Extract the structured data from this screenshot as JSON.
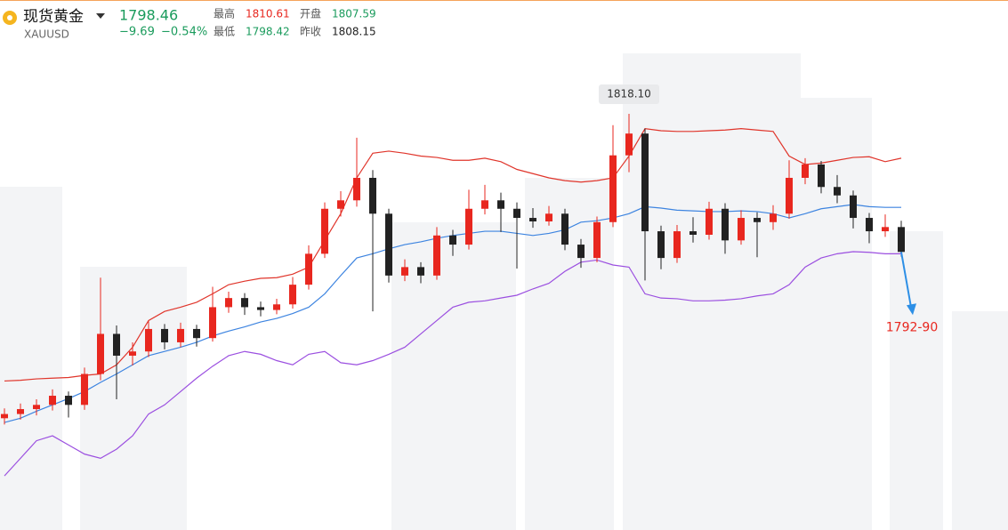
{
  "header": {
    "name": "现货黄金",
    "symbol": "XAUUSD",
    "price": 1798.46,
    "change": {
      "value": -9.69,
      "label": "−9.69"
    },
    "change_pct": {
      "value": -0.54,
      "label": "−0.54%"
    },
    "stats": [
      {
        "label": "最高",
        "value": 1810.61,
        "color": "#e8271f"
      },
      {
        "label": "开盘",
        "value": 1807.59,
        "color": "#1a9b5c"
      },
      {
        "label": "最低",
        "value": 1798.42,
        "color": "#1a9b5c"
      },
      {
        "label": "昨收",
        "value": 1808.15,
        "color": "#222222"
      }
    ]
  },
  "chart_data": {
    "type": "candlestick",
    "ylim": [
      1758.9,
      1834.3
    ],
    "up_color": "#e8271f",
    "down_color": "#222222",
    "ohlc": [
      [
        1774.8,
        1776.2,
        1773.9,
        1775.4
      ],
      [
        1775.4,
        1776.9,
        1774.6,
        1776.1
      ],
      [
        1776.1,
        1777.5,
        1775.2,
        1776.7
      ],
      [
        1776.7,
        1778.9,
        1775.9,
        1778.0
      ],
      [
        1778.0,
        1778.6,
        1774.9,
        1776.7
      ],
      [
        1776.7,
        1782.0,
        1776.0,
        1781.1
      ],
      [
        1781.1,
        1794.8,
        1780.2,
        1786.8
      ],
      [
        1786.8,
        1788.0,
        1777.5,
        1783.7
      ],
      [
        1783.7,
        1785.6,
        1782.3,
        1784.3
      ],
      [
        1784.3,
        1788.6,
        1783.5,
        1787.5
      ],
      [
        1787.5,
        1788.2,
        1784.6,
        1785.6
      ],
      [
        1785.6,
        1788.4,
        1784.9,
        1787.5
      ],
      [
        1787.5,
        1788.1,
        1785.0,
        1786.2
      ],
      [
        1786.2,
        1793.5,
        1785.7,
        1790.6
      ],
      [
        1790.6,
        1792.8,
        1789.8,
        1791.9
      ],
      [
        1791.9,
        1792.6,
        1789.5,
        1790.6
      ],
      [
        1790.6,
        1791.4,
        1789.3,
        1790.2
      ],
      [
        1790.2,
        1791.8,
        1789.6,
        1791.0
      ],
      [
        1791.0,
        1794.9,
        1790.4,
        1793.8
      ],
      [
        1793.8,
        1799.4,
        1793.1,
        1798.2
      ],
      [
        1798.2,
        1805.5,
        1797.6,
        1804.6
      ],
      [
        1804.6,
        1807.1,
        1803.5,
        1805.8
      ],
      [
        1805.8,
        1814.7,
        1804.9,
        1809.0
      ],
      [
        1809.0,
        1810.1,
        1790.0,
        1803.9
      ],
      [
        1803.9,
        1804.6,
        1794.1,
        1795.1
      ],
      [
        1795.1,
        1797.4,
        1794.3,
        1796.3
      ],
      [
        1796.3,
        1797.0,
        1794.0,
        1795.1
      ],
      [
        1795.1,
        1802.0,
        1794.5,
        1800.8
      ],
      [
        1800.8,
        1801.6,
        1797.9,
        1799.5
      ],
      [
        1799.5,
        1807.3,
        1798.8,
        1804.6
      ],
      [
        1804.6,
        1808.0,
        1803.8,
        1805.8
      ],
      [
        1805.8,
        1806.9,
        1801.3,
        1804.6
      ],
      [
        1804.6,
        1805.5,
        1796.1,
        1803.3
      ],
      [
        1803.3,
        1804.7,
        1801.9,
        1802.8
      ],
      [
        1802.8,
        1805.0,
        1802.2,
        1803.9
      ],
      [
        1803.9,
        1804.6,
        1798.7,
        1799.5
      ],
      [
        1799.5,
        1800.3,
        1796.2,
        1797.6
      ],
      [
        1797.6,
        1803.5,
        1797.0,
        1802.7
      ],
      [
        1802.7,
        1816.5,
        1802.0,
        1812.2
      ],
      [
        1812.2,
        1818.1,
        1809.8,
        1815.3
      ],
      [
        1815.3,
        1816.0,
        1794.4,
        1801.4
      ],
      [
        1801.4,
        1802.2,
        1796.0,
        1797.6
      ],
      [
        1797.6,
        1802.3,
        1796.9,
        1801.4
      ],
      [
        1801.4,
        1803.4,
        1799.8,
        1800.9
      ],
      [
        1800.9,
        1805.6,
        1800.2,
        1804.6
      ],
      [
        1804.6,
        1805.4,
        1798.2,
        1800.1
      ],
      [
        1800.1,
        1804.4,
        1799.5,
        1803.3
      ],
      [
        1803.3,
        1804.1,
        1797.7,
        1802.7
      ],
      [
        1802.7,
        1805.1,
        1801.6,
        1803.9
      ],
      [
        1803.9,
        1811.5,
        1803.2,
        1809.0
      ],
      [
        1809.0,
        1811.8,
        1808.1,
        1810.9
      ],
      [
        1810.9,
        1811.4,
        1806.8,
        1807.7
      ],
      [
        1807.7,
        1809.4,
        1805.4,
        1806.5
      ],
      [
        1806.5,
        1807.2,
        1801.8,
        1803.3
      ],
      [
        1803.3,
        1804.0,
        1799.7,
        1801.4
      ],
      [
        1801.4,
        1803.8,
        1800.6,
        1802.0
      ],
      [
        1802.0,
        1802.9,
        1797.8,
        1798.46
      ]
    ],
    "lines": [
      {
        "color": "#e0352b",
        "values": [
          1780.1,
          1780.2,
          1780.4,
          1780.5,
          1780.6,
          1780.9,
          1781.1,
          1782.4,
          1784.9,
          1788.7,
          1790.0,
          1790.6,
          1791.3,
          1792.5,
          1793.8,
          1794.3,
          1794.7,
          1794.8,
          1795.3,
          1796.3,
          1800.1,
          1803.9,
          1809.0,
          1812.5,
          1812.8,
          1812.5,
          1812.1,
          1811.9,
          1811.5,
          1811.5,
          1811.8,
          1811.3,
          1810.2,
          1809.6,
          1809.0,
          1808.6,
          1808.4,
          1808.6,
          1809.0,
          1812.1,
          1816.0,
          1815.7,
          1815.6,
          1815.6,
          1815.7,
          1815.8,
          1816.0,
          1815.8,
          1815.6,
          1812.1,
          1810.9,
          1811.1,
          1811.5,
          1811.9,
          1812.0,
          1811.3,
          1811.8
        ]
      },
      {
        "color": "#3d84e0",
        "values": [
          1774.2,
          1774.8,
          1775.8,
          1776.7,
          1777.6,
          1778.6,
          1779.9,
          1781.1,
          1782.4,
          1783.7,
          1784.3,
          1784.9,
          1785.6,
          1786.5,
          1787.2,
          1787.8,
          1788.5,
          1789.0,
          1789.7,
          1790.6,
          1792.5,
          1795.1,
          1797.6,
          1798.2,
          1798.9,
          1799.5,
          1799.9,
          1800.4,
          1800.8,
          1801.1,
          1801.4,
          1801.4,
          1801.1,
          1800.8,
          1801.1,
          1801.6,
          1802.7,
          1802.9,
          1803.3,
          1803.9,
          1804.9,
          1804.7,
          1804.4,
          1804.3,
          1804.2,
          1804.2,
          1804.3,
          1804.2,
          1803.9,
          1803.3,
          1803.9,
          1804.6,
          1804.9,
          1805.2,
          1804.9,
          1804.8,
          1804.8
        ]
      },
      {
        "color": "#9b4fe0",
        "values": [
          1766.6,
          1769.1,
          1771.6,
          1772.3,
          1771.0,
          1769.7,
          1769.1,
          1770.4,
          1772.3,
          1775.4,
          1776.7,
          1778.6,
          1780.5,
          1782.2,
          1783.7,
          1784.3,
          1783.9,
          1783.0,
          1782.4,
          1783.9,
          1784.3,
          1782.7,
          1782.4,
          1783.0,
          1783.9,
          1784.9,
          1786.8,
          1788.7,
          1790.6,
          1791.3,
          1791.5,
          1791.9,
          1792.3,
          1793.2,
          1794.0,
          1795.7,
          1797.0,
          1797.3,
          1796.6,
          1796.3,
          1792.5,
          1791.9,
          1791.8,
          1791.5,
          1791.5,
          1791.6,
          1791.8,
          1792.2,
          1792.5,
          1793.8,
          1796.3,
          1797.6,
          1798.2,
          1798.5,
          1798.4,
          1798.2,
          1798.2
        ]
      }
    ],
    "peak": {
      "value": 1818.1,
      "label": "1818.10"
    },
    "target": "1792-90",
    "target_color": "#e8271f",
    "arrow_color": "#2d8fe6"
  }
}
